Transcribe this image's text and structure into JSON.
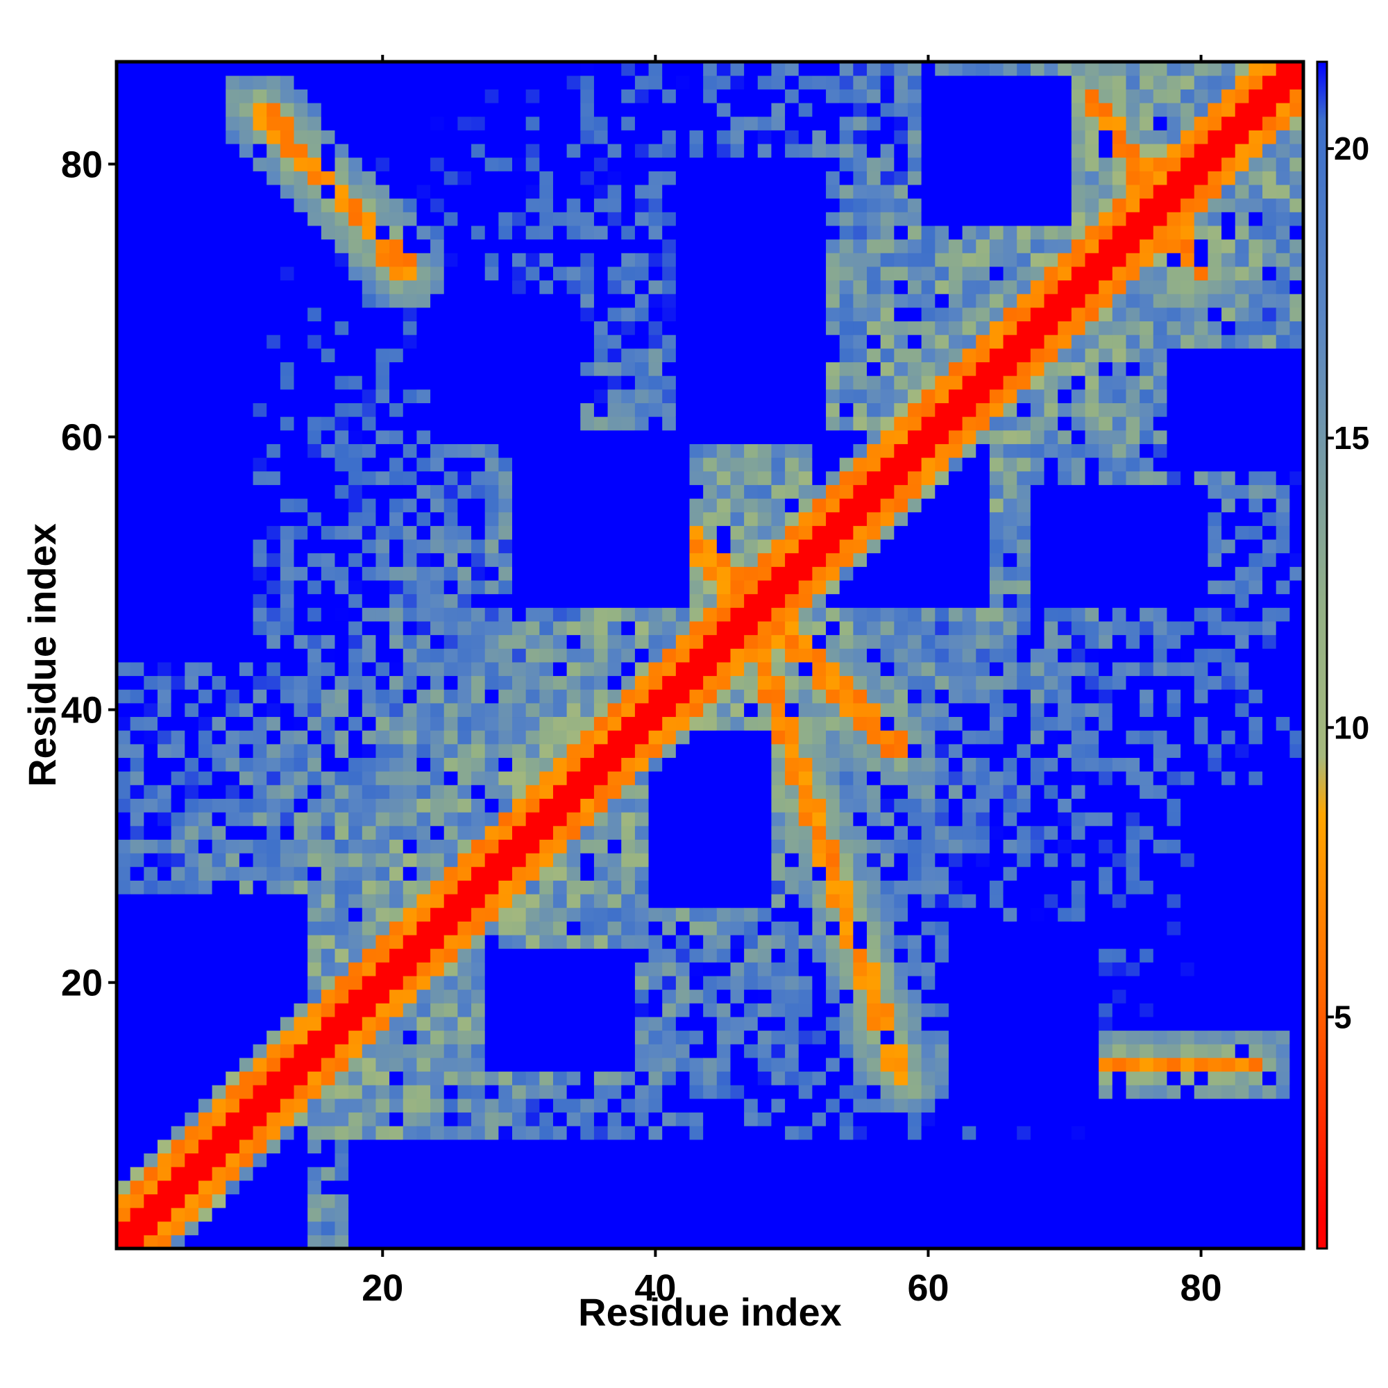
{
  "chart_data": {
    "type": "heatmap",
    "title": "",
    "xlabel": "Residue index",
    "ylabel": "Residue index",
    "n_residues": 87,
    "xlim": [
      1,
      87
    ],
    "ylim": [
      1,
      87
    ],
    "x_ticks": [
      20,
      40,
      60,
      80
    ],
    "y_ticks": [
      20,
      40,
      60,
      80
    ],
    "colorbar": {
      "min": 1,
      "max": 21.5,
      "ticks": [
        5,
        10,
        15,
        20
      ],
      "stops": [
        {
          "value": 1.5,
          "color": "#ff0000"
        },
        {
          "value": 5.5,
          "color": "#ff6a00"
        },
        {
          "value": 8.5,
          "color": "#ffa600"
        },
        {
          "value": 9.5,
          "color": "#a6b97d"
        },
        {
          "value": 12,
          "color": "#94b185"
        },
        {
          "value": 17,
          "color": "#5a86c3"
        },
        {
          "value": 20.5,
          "color": "#3d6fcb"
        },
        {
          "value": 21.5,
          "color": "#0000ff"
        }
      ]
    },
    "diagonal": "distance below 1.5 on the main diagonal",
    "contact_features": [
      {
        "description": "anti-diagonal strand pairing",
        "from": [
          46,
          49
        ],
        "to": [
          58,
          37
        ]
      },
      {
        "description": "anti-diagonal strand pairing",
        "from": [
          46,
          49
        ],
        "to": [
          36,
          60
        ]
      },
      {
        "description": "anti-diagonal strand pairing",
        "from": [
          46,
          49
        ],
        "to": [
          58,
          13
        ]
      },
      {
        "description": "anti-diagonal strand pairing",
        "from": [
          46,
          49
        ],
        "to": [
          37,
          58
        ]
      },
      {
        "description": "anti-diagonal strand pairing",
        "from": [
          11,
          84
        ],
        "to": [
          22,
          72
        ]
      },
      {
        "description": "anti-diagonal strand pairing",
        "from": [
          63,
          14
        ],
        "to": [
          84,
          14
        ]
      },
      {
        "description": "anti-diagonal strand pairing",
        "from": [
          72,
          85
        ],
        "to": [
          80,
          72
        ]
      }
    ],
    "empty_regions": [
      {
        "x": [
          1,
          14
        ],
        "y": [
          1,
          26
        ]
      },
      {
        "x": [
          18,
          84
        ],
        "y": [
          1,
          8
        ]
      },
      {
        "x": [
          1,
          10
        ],
        "y": [
          44,
          74
        ]
      },
      {
        "x": [
          30,
          42
        ],
        "y": [
          48,
          60
        ]
      },
      {
        "x": [
          52,
          64
        ],
        "y": [
          48,
          60
        ]
      },
      {
        "x": [
          40,
          48
        ],
        "y": [
          26,
          38
        ]
      },
      {
        "x": [
          42,
          52
        ],
        "y": [
          60,
          80
        ]
      },
      {
        "x": [
          62,
          72
        ],
        "y": [
          10,
          24
        ]
      },
      {
        "x": [
          60,
          70
        ],
        "y": [
          76,
          86
        ]
      },
      {
        "x": [
          68,
          80
        ],
        "y": [
          48,
          56
        ]
      },
      {
        "x": [
          28,
          38
        ],
        "y": [
          14,
          22
        ]
      },
      {
        "x": [
          78,
          87
        ],
        "y": [
          58,
          66
        ]
      },
      {
        "x": [
          80,
          87
        ],
        "y": [
          20,
          34
        ]
      },
      {
        "x": [
          24,
          34
        ],
        "y": [
          60,
          70
        ]
      }
    ]
  }
}
